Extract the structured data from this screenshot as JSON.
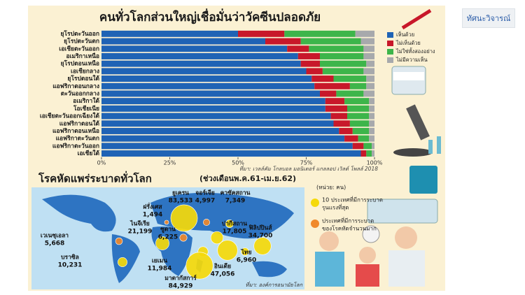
{
  "chart_data": {
    "type": "bar",
    "stacked": true,
    "orientation": "horizontal",
    "title": "คนทั่วโลกส่วนใหญ่เชื่อมั่นว่าวัคซีนปลอดภัย",
    "categories": [
      "ยุโรปตะวันออก",
      "ยุโรปตะวันตก",
      "เอเชียตะวันออก",
      "อเมริกาเหนือ",
      "ยุโรปตอนเหนือ",
      "เอเชียกลาง",
      "ยุโรปตอนใต้",
      "แอฟริกาตอนกลาง",
      "ตะวันออกกลาง",
      "อเมริกาใต้",
      "โอเชียเนีย",
      "เอเชียตะวันออกเฉียงใต้",
      "แอฟริกาตอนใต้",
      "แอฟริกาตอนเหนือ",
      "แอฟริกาตะวันตก",
      "แอฟริกาตะวันออก",
      "เอเชียใต้"
    ],
    "series": [
      {
        "name": "เห็นด้วย",
        "color": "#1f63b5",
        "values": [
          50,
          60,
          68,
          72,
          73,
          75,
          77,
          78,
          80,
          82,
          82,
          84,
          85,
          87,
          89,
          92,
          95
        ]
      },
      {
        "name": "ไม่เห็นด้วย",
        "color": "#c8182a",
        "values": [
          17,
          13,
          8,
          8,
          7,
          6,
          8,
          13,
          6,
          7,
          8,
          6,
          6,
          5,
          5,
          4,
          2
        ]
      },
      {
        "name": "ไม่ใช่ทั้งสองอย่าง",
        "color": "#3db54a",
        "values": [
          26,
          22,
          20,
          16,
          17,
          15,
          12,
          6,
          10,
          9,
          8,
          8,
          7,
          6,
          4,
          3,
          2
        ]
      },
      {
        "name": "ไม่มีความเห็น",
        "color": "#a7a9ac",
        "values": [
          7,
          5,
          4,
          4,
          3,
          4,
          3,
          3,
          4,
          2,
          2,
          2,
          2,
          2,
          2,
          1,
          1
        ]
      }
    ],
    "xlim": [
      0,
      100
    ],
    "xticks": [
      {
        "value": 0,
        "label": "0%"
      },
      {
        "value": 25,
        "label": "25%"
      },
      {
        "value": 50,
        "label": "50%"
      },
      {
        "value": 75,
        "label": "75%"
      },
      {
        "value": 100,
        "label": "100%"
      }
    ],
    "legend": "right",
    "source": "ที่มา: เวลล์คัม โกลบอล มอนิเตอร์ แกลลอป เวิลด์ โพลล์ 2018"
  },
  "measles_map": {
    "title": "โรคหัดแพร่ระบาดทั่วโลก",
    "period": "(ช่วงเดือนพ.ค.61-เม.ย.62)",
    "unit": "(หน่วย: คน)",
    "legend": [
      {
        "color": "#f5d90a",
        "lines": [
          "10 ประเทศที่มีการระบาด",
          "รุนแรงที่สุด"
        ]
      },
      {
        "color": "#f0892b",
        "lines": [
          "ประเทศที่มีการระบาด",
          "ของโรคหัดจำนวนมาก"
        ]
      }
    ],
    "countries": [
      {
        "name": "ยูเครน",
        "cases": 83533,
        "label": "83,533",
        "group": 0
      },
      {
        "name": "จอร์เจีย",
        "cases": 4997,
        "label": "4,997",
        "group": 1
      },
      {
        "name": "คาซัคสถาน",
        "cases": 7349,
        "label": "7,349",
        "group": 0
      },
      {
        "name": "ฝรั่งเศส",
        "cases": 1494,
        "label": "1,494",
        "group": 1
      },
      {
        "name": "ซูดาน",
        "cases": 6225,
        "label": "6,225",
        "group": 1
      },
      {
        "name": "ปากีสถาน",
        "cases": 17805,
        "label": "17,805",
        "group": 0
      },
      {
        "name": "ฟิลิปปินส์",
        "cases": 34700,
        "label": "34,700",
        "group": 0
      },
      {
        "name": "เวเนซุเอลา",
        "cases": 5668,
        "label": "5,668",
        "group": 1
      },
      {
        "name": "ไนจีเรีย",
        "cases": 21199,
        "label": "21,199",
        "group": 0
      },
      {
        "name": "ไทย",
        "cases": 6960,
        "label": "6,960",
        "group": 0
      },
      {
        "name": "บราซิล",
        "cases": 10231,
        "label": "10,231",
        "group": 0
      },
      {
        "name": "เยเมน",
        "cases": 11984,
        "label": "11,984",
        "group": 0
      },
      {
        "name": "อินเดีย",
        "cases": 47056,
        "label": "47,056",
        "group": 0
      },
      {
        "name": "มาดากัสการ์",
        "cases": 84929,
        "label": "84,929",
        "group": 0
      }
    ],
    "source": "ที่มา: องค์การอนามัยโลก"
  },
  "sidebar": {
    "button": "ทัศนะวิจารณ์"
  }
}
